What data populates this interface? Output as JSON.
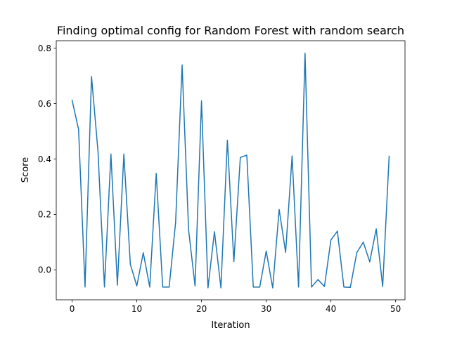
{
  "chart_data": {
    "type": "line",
    "title": "Finding optimal config for Random Forest with random search",
    "xlabel": "Iteration",
    "ylabel": "Score",
    "xlim": [
      -2.45,
      51.45
    ],
    "ylim": [
      -0.108,
      0.827
    ],
    "xticks": [
      0,
      10,
      20,
      30,
      40,
      50
    ],
    "xtick_labels": [
      "0",
      "10",
      "20",
      "30",
      "40",
      "50"
    ],
    "yticks": [
      0.0,
      0.2,
      0.4,
      0.6,
      0.8
    ],
    "ytick_labels": [
      "0.0",
      "0.2",
      "0.4",
      "0.6",
      "0.8"
    ],
    "grid": false,
    "series": [
      {
        "color": "#1f77b4",
        "x": [
          0,
          1,
          2,
          3,
          4,
          5,
          6,
          7,
          8,
          9,
          10,
          11,
          12,
          13,
          14,
          15,
          16,
          17,
          18,
          19,
          20,
          21,
          22,
          23,
          24,
          25,
          26,
          27,
          28,
          29,
          30,
          31,
          32,
          33,
          34,
          35,
          36,
          37,
          38,
          39,
          40,
          41,
          42,
          43,
          44,
          45,
          46,
          47,
          48,
          49
        ],
        "values": [
          0.612,
          0.507,
          -0.062,
          0.698,
          0.428,
          -0.062,
          0.418,
          -0.055,
          0.418,
          0.02,
          -0.058,
          0.062,
          -0.062,
          0.348,
          -0.062,
          -0.062,
          0.172,
          0.74,
          0.145,
          -0.058,
          0.61,
          -0.065,
          0.138,
          -0.065,
          0.468,
          0.03,
          0.406,
          0.414,
          -0.062,
          -0.062,
          0.068,
          -0.065,
          0.218,
          0.063,
          0.411,
          -0.062,
          0.782,
          -0.062,
          -0.035,
          -0.06,
          0.108,
          0.14,
          -0.062,
          -0.063,
          0.062,
          0.1,
          0.029,
          0.148,
          -0.06,
          0.41
        ]
      }
    ]
  }
}
